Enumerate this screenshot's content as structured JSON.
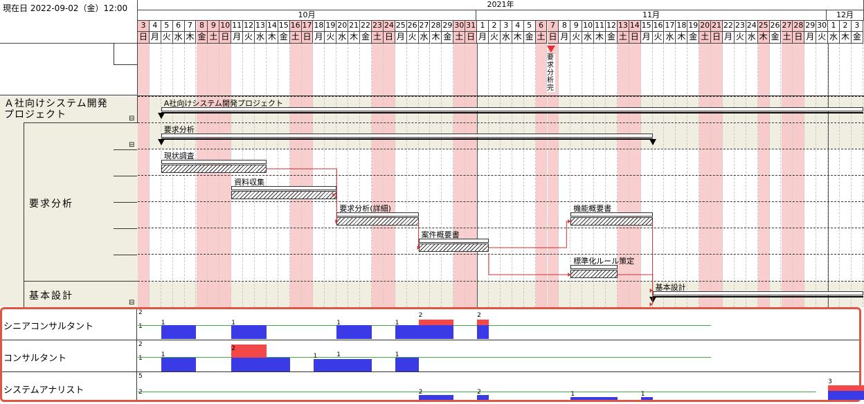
{
  "current_date_label": "現在日 2022-09-02（金）12:00",
  "year_label": "2021年",
  "months": [
    {
      "label": "10月"
    },
    {
      "label": "11月"
    },
    {
      "label": "12月"
    }
  ],
  "days": [
    {
      "d": "3",
      "w": "日",
      "we": true
    },
    {
      "d": "4",
      "w": "月",
      "we": false
    },
    {
      "d": "5",
      "w": "火",
      "we": false
    },
    {
      "d": "6",
      "w": "水",
      "we": false
    },
    {
      "d": "7",
      "w": "木",
      "we": false
    },
    {
      "d": "8",
      "w": "金",
      "we": true
    },
    {
      "d": "9",
      "w": "土",
      "we": true
    },
    {
      "d": "10",
      "w": "日",
      "we": true
    },
    {
      "d": "11",
      "w": "月",
      "we": false
    },
    {
      "d": "12",
      "w": "火",
      "we": false
    },
    {
      "d": "13",
      "w": "水",
      "we": false
    },
    {
      "d": "14",
      "w": "木",
      "we": false
    },
    {
      "d": "15",
      "w": "金",
      "we": false
    },
    {
      "d": "16",
      "w": "土",
      "we": true
    },
    {
      "d": "17",
      "w": "日",
      "we": true
    },
    {
      "d": "18",
      "w": "月",
      "we": false
    },
    {
      "d": "19",
      "w": "火",
      "we": false
    },
    {
      "d": "20",
      "w": "水",
      "we": false
    },
    {
      "d": "21",
      "w": "木",
      "we": false
    },
    {
      "d": "22",
      "w": "金",
      "we": false
    },
    {
      "d": "23",
      "w": "土",
      "we": true
    },
    {
      "d": "24",
      "w": "日",
      "we": true
    },
    {
      "d": "25",
      "w": "月",
      "we": false
    },
    {
      "d": "26",
      "w": "火",
      "we": false
    },
    {
      "d": "27",
      "w": "水",
      "we": false
    },
    {
      "d": "28",
      "w": "木",
      "we": false
    },
    {
      "d": "29",
      "w": "金",
      "we": false
    },
    {
      "d": "30",
      "w": "土",
      "we": true
    },
    {
      "d": "31",
      "w": "日",
      "we": true
    },
    {
      "d": "1",
      "w": "月",
      "we": false
    },
    {
      "d": "2",
      "w": "火",
      "we": false
    },
    {
      "d": "3",
      "w": "水",
      "we": false
    },
    {
      "d": "4",
      "w": "木",
      "we": false
    },
    {
      "d": "5",
      "w": "金",
      "we": false
    },
    {
      "d": "6",
      "w": "土",
      "we": true
    },
    {
      "d": "7",
      "w": "日",
      "we": true
    },
    {
      "d": "8",
      "w": "月",
      "we": false
    },
    {
      "d": "9",
      "w": "火",
      "we": false
    },
    {
      "d": "10",
      "w": "水",
      "we": false
    },
    {
      "d": "11",
      "w": "木",
      "we": false
    },
    {
      "d": "12",
      "w": "金",
      "we": false
    },
    {
      "d": "13",
      "w": "土",
      "we": true
    },
    {
      "d": "14",
      "w": "日",
      "we": true
    },
    {
      "d": "15",
      "w": "月",
      "we": false
    },
    {
      "d": "16",
      "w": "火",
      "we": false
    },
    {
      "d": "17",
      "w": "水",
      "we": false
    },
    {
      "d": "18",
      "w": "木",
      "we": false
    },
    {
      "d": "19",
      "w": "金",
      "we": false
    },
    {
      "d": "20",
      "w": "土",
      "we": true
    },
    {
      "d": "21",
      "w": "日",
      "we": true
    },
    {
      "d": "22",
      "w": "月",
      "we": false
    },
    {
      "d": "23",
      "w": "火",
      "we": false
    },
    {
      "d": "24",
      "w": "水",
      "we": false
    },
    {
      "d": "25",
      "w": "木",
      "we": true
    },
    {
      "d": "26",
      "w": "金",
      "we": false
    },
    {
      "d": "27",
      "w": "土",
      "we": true
    },
    {
      "d": "28",
      "w": "日",
      "we": true
    },
    {
      "d": "29",
      "w": "月",
      "we": false
    },
    {
      "d": "30",
      "w": "火",
      "we": false
    },
    {
      "d": "1",
      "w": "水",
      "we": false
    },
    {
      "d": "2",
      "w": "木",
      "we": false
    },
    {
      "d": "3",
      "w": "金",
      "we": false
    }
  ],
  "milestone_label": "要求分析完",
  "left_tree": {
    "project": "Ａ社向けシステム開発プロジェクト",
    "phase1": "要求分析",
    "phase2": "基本設計"
  },
  "tasks": {
    "project": "A社向けシステム開発プロジェクト",
    "req": "要求分析",
    "t1": "現状調査",
    "t2": "資料収集",
    "t3": "要求分析(詳細)",
    "t4": "案件概要書",
    "t5": "機能概要書",
    "t6": "標準化ルール策定",
    "basic": "基本設計"
  },
  "resources": [
    {
      "name": "シニアコンサルタント",
      "max": "2",
      "cap": "1"
    },
    {
      "name": "コンサルタント",
      "max": "2",
      "cap": "1"
    },
    {
      "name": "システムアナリスト",
      "max": "5",
      "cap": "2"
    }
  ],
  "resource_values": {
    "r1": [
      "1",
      "1",
      "1",
      "1",
      "2",
      "2"
    ],
    "r2": [
      "1",
      "2",
      "1",
      "1",
      "1"
    ],
    "r3": [
      "2",
      "2",
      "1",
      "1",
      "3"
    ]
  },
  "colors": {
    "weekend": "#f8c6c6",
    "over": "#f24848",
    "load": "#3a3ae6",
    "panel_border": "#e05540"
  }
}
